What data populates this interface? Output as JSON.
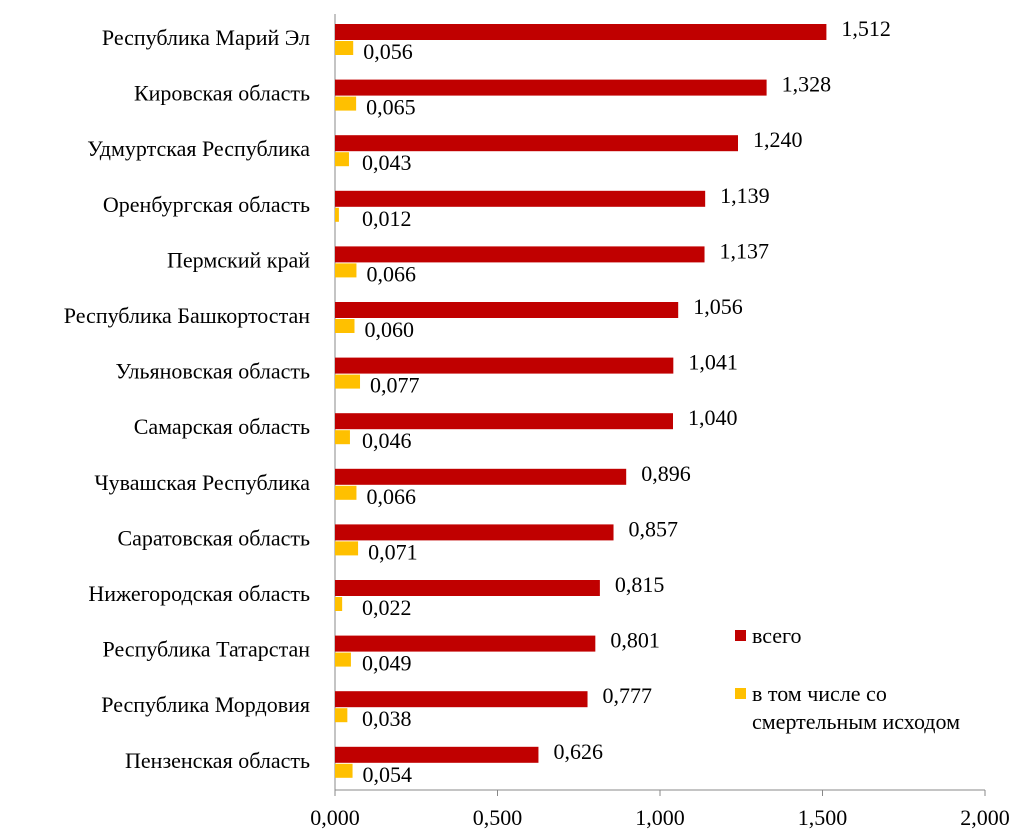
{
  "chart_data": {
    "type": "barh",
    "categories": [
      "Республика Марий Эл",
      "Кировская область",
      "Удмуртская Республика",
      "Оренбургская область",
      "Пермский край",
      "Республика Башкортостан",
      "Ульяновская область",
      "Самарская область",
      "Чувашская Республика",
      "Саратовская область",
      "Нижегородская область",
      "Республика Татарстан",
      "Республика Мордовия",
      "Пензенская область"
    ],
    "series": [
      {
        "name": "всего",
        "color": "#c00000",
        "values": [
          1.512,
          1.328,
          1.24,
          1.139,
          1.137,
          1.056,
          1.041,
          1.04,
          0.896,
          0.857,
          0.815,
          0.801,
          0.777,
          0.626
        ],
        "value_labels": [
          "1,512",
          "1,328",
          "1,240",
          "1,139",
          "1,137",
          "1,056",
          "1,041",
          "1,040",
          "0,896",
          "0,857",
          "0,815",
          "0,801",
          "0,777",
          "0,626"
        ]
      },
      {
        "name": "в том числе со смертельным исходом",
        "color": "#ffc000",
        "values": [
          0.056,
          0.065,
          0.043,
          0.012,
          0.066,
          0.06,
          0.077,
          0.046,
          0.066,
          0.071,
          0.022,
          0.049,
          0.038,
          0.054
        ],
        "value_labels": [
          "0,056",
          "0,065",
          "0,043",
          "0,012",
          "0,066",
          "0,060",
          "0,077",
          "0,046",
          "0,066",
          "0,071",
          "0,022",
          "0,049",
          "0,038",
          "0,054"
        ]
      }
    ],
    "xlim": [
      0,
      2
    ],
    "xticks": [
      {
        "value": 0,
        "label": "0,000"
      },
      {
        "value": 0.5,
        "label": "0,500"
      },
      {
        "value": 1,
        "label": "1,000"
      },
      {
        "value": 1.5,
        "label": "1,500"
      },
      {
        "value": 2,
        "label": "2,000"
      }
    ],
    "legend_position": "right"
  }
}
